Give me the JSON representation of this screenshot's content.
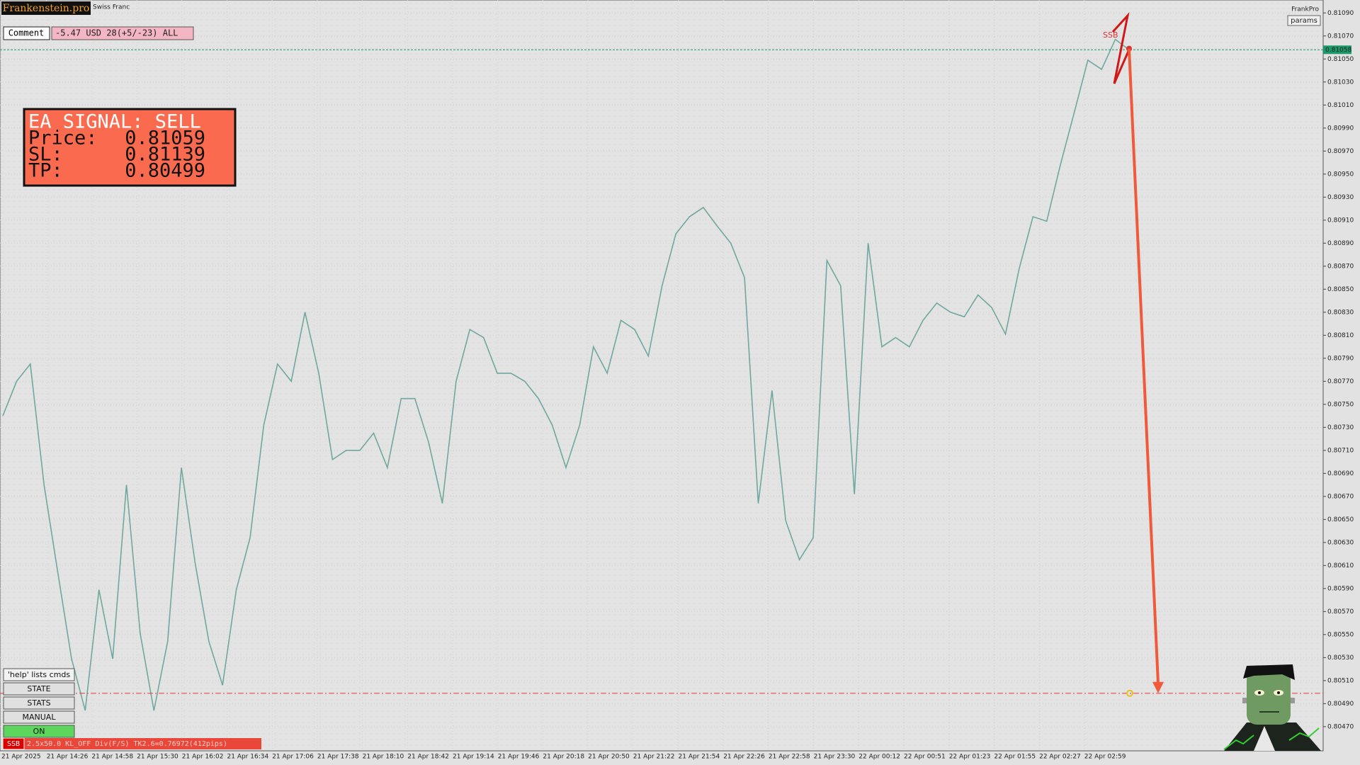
{
  "chart_data": {
    "type": "line",
    "symbol_name": "Swiss Franc",
    "color": "#6fa89e",
    "values": [
      0.8074,
      0.8077,
      0.80785,
      0.8068,
      0.80604,
      0.80529,
      0.80484,
      0.80589,
      0.80529,
      0.8068,
      0.80551,
      0.80484,
      0.80544,
      0.80695,
      0.80612,
      0.80544,
      0.80506,
      0.80589,
      0.80634,
      0.80732,
      0.80785,
      0.8077,
      0.8083,
      0.80777,
      0.80702,
      0.8071,
      0.8071,
      0.80725,
      0.80695,
      0.80755,
      0.80755,
      0.80717,
      0.80664,
      0.8077,
      0.80815,
      0.80808,
      0.80777,
      0.80777,
      0.8077,
      0.80755,
      0.80732,
      0.80695,
      0.80732,
      0.808,
      0.80777,
      0.80823,
      0.80815,
      0.80792,
      0.80853,
      0.80898,
      0.80913,
      0.80921,
      0.80905,
      0.8089,
      0.8086,
      0.80664,
      0.80762,
      0.80649,
      0.80615,
      0.80634,
      0.80875,
      0.80853,
      0.80672,
      0.8089,
      0.808,
      0.80808,
      0.808,
      0.80823,
      0.80838,
      0.8083,
      0.80826,
      0.80845,
      0.80834,
      0.80811,
      0.80868,
      0.80913,
      0.80909,
      0.80958,
      0.81003,
      0.81049,
      0.81041,
      0.81067,
      0.81058
    ],
    "ylim": [
      0.80449,
      0.811
    ],
    "yticks": [
      {
        "value": 0.8047,
        "label": "0.80470"
      },
      {
        "value": 0.8049,
        "label": "0.80490"
      },
      {
        "value": 0.8051,
        "label": "0.80510"
      },
      {
        "value": 0.8053,
        "label": "0.80530"
      },
      {
        "value": 0.8055,
        "label": "0.80550"
      },
      {
        "value": 0.8057,
        "label": "0.80570"
      },
      {
        "value": 0.8059,
        "label": "0.80590"
      },
      {
        "value": 0.8061,
        "label": "0.80610"
      },
      {
        "value": 0.8063,
        "label": "0.80630"
      },
      {
        "value": 0.8065,
        "label": "0.80650"
      },
      {
        "value": 0.8067,
        "label": "0.80670"
      },
      {
        "value": 0.8069,
        "label": "0.80690"
      },
      {
        "value": 0.8071,
        "label": "0.80710"
      },
      {
        "value": 0.8073,
        "label": "0.80730"
      },
      {
        "value": 0.8075,
        "label": "0.80750"
      },
      {
        "value": 0.8077,
        "label": "0.80770"
      },
      {
        "value": 0.8079,
        "label": "0.80790"
      },
      {
        "value": 0.8081,
        "label": "0.80810"
      },
      {
        "value": 0.8083,
        "label": "0.80830"
      },
      {
        "value": 0.8085,
        "label": "0.80850"
      },
      {
        "value": 0.8087,
        "label": "0.80870"
      },
      {
        "value": 0.8089,
        "label": "0.80890"
      },
      {
        "value": 0.8091,
        "label": "0.80910"
      },
      {
        "value": 0.8093,
        "label": "0.80930"
      },
      {
        "value": 0.8095,
        "label": "0.80950"
      },
      {
        "value": 0.8097,
        "label": "0.80970"
      },
      {
        "value": 0.8099,
        "label": "0.80990"
      },
      {
        "value": 0.8101,
        "label": "0.81010"
      },
      {
        "value": 0.8103,
        "label": "0.81030"
      },
      {
        "value": 0.8105,
        "label": "0.81050"
      },
      {
        "value": 0.8107,
        "label": "0.81070"
      },
      {
        "value": 0.8109,
        "label": "0.81090"
      }
    ],
    "xtick_labels": [
      "21 Apr 2025",
      "21 Apr 14:26",
      "21 Apr 14:58",
      "21 Apr 15:30",
      "21 Apr 16:02",
      "21 Apr 16:34",
      "21 Apr 17:06",
      "21 Apr 17:38",
      "21 Apr 18:10",
      "21 Apr 18:42",
      "21 Apr 19:14",
      "21 Apr 19:46",
      "21 Apr 20:18",
      "21 Apr 20:50",
      "21 Apr 21:22",
      "21 Apr 21:54",
      "21 Apr 22:26",
      "21 Apr 22:58",
      "21 Apr 23:30",
      "22 Apr 00:12",
      "22 Apr 00:51",
      "22 Apr 01:23",
      "22 Apr 01:55",
      "22 Apr 02:27",
      "22 Apr 02:59"
    ],
    "grid": true,
    "current_price": 0.81058,
    "signal_label": "SSB",
    "signal": {
      "title": "EA SIGNAL: SELL",
      "price_label": "Price:",
      "price": 0.81059,
      "sl_label": "SL:",
      "sl": 0.81139,
      "tp_label": "TP:",
      "tp": 0.80499
    }
  },
  "header": {
    "logo": "Frankenstein.pro",
    "comment_label": "Comment",
    "comment": "-5.47 USD 28(+5/-23) ALL",
    "brand": "FrankPro",
    "params": "params"
  },
  "panel": {
    "help": "'help' lists cmds",
    "buttons": [
      "STATE",
      "STATS",
      "MANUAL",
      "ON"
    ]
  },
  "status": {
    "tag": "SSB",
    "text": "2.5x50.0 KL_OFF Div(F/S) TK2.6=0.76972(412pips)"
  }
}
